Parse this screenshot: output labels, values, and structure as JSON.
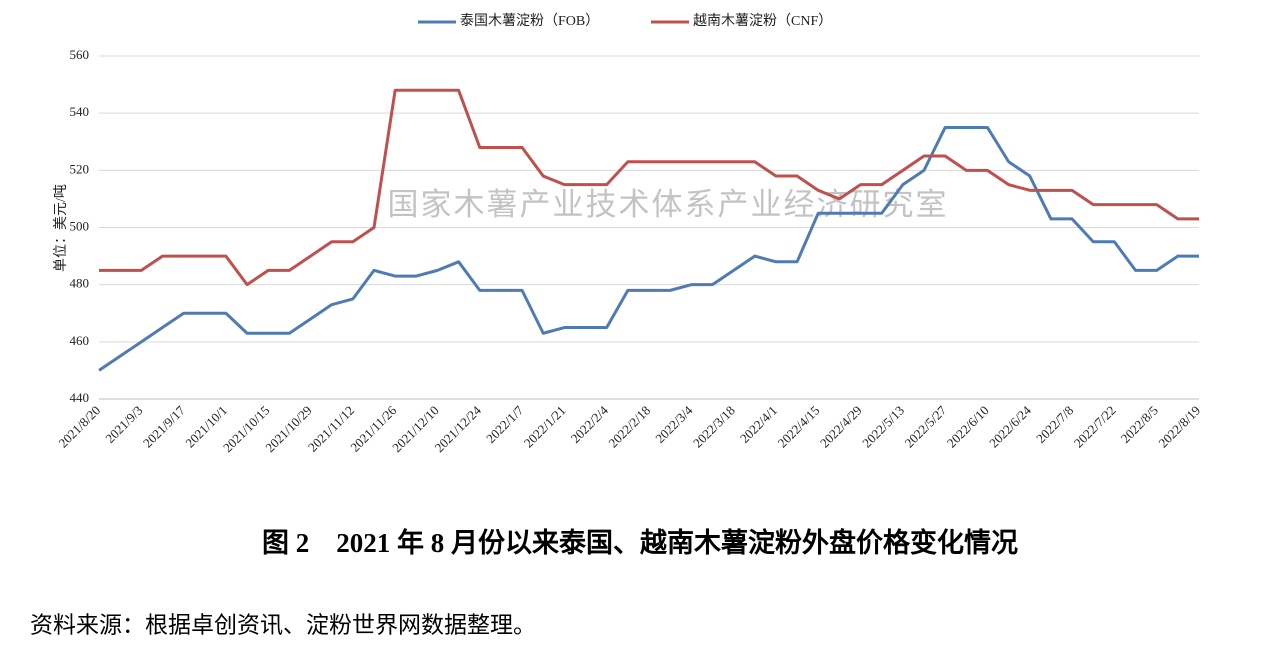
{
  "chart_data": {
    "type": "line",
    "legend_position": "top",
    "ylabel": "单位：美元/吨",
    "watermark": "国家木薯产业技术体系产业经济研究室",
    "caption": "图 2　2021 年 8 月份以来泰国、越南木薯淀粉外盘价格变化情况",
    "source": "资料来源：根据卓创资讯、淀粉世界网数据整理。",
    "categories": [
      "2021/8/20",
      null,
      "2021/9/3",
      null,
      "2021/9/17",
      null,
      "2021/10/1",
      null,
      "2021/10/15",
      null,
      "2021/10/29",
      null,
      "2021/11/12",
      null,
      "2021/11/26",
      null,
      "2021/12/10",
      null,
      "2021/12/24",
      null,
      "2022/1/7",
      null,
      "2022/1/21",
      null,
      "2022/2/4",
      null,
      "2022/2/18",
      null,
      "2022/3/4",
      null,
      "2022/3/18",
      null,
      "2022/4/1",
      null,
      "2022/4/15",
      null,
      "2022/4/29",
      null,
      "2022/5/13",
      null,
      "2022/5/27",
      null,
      "2022/6/10",
      null,
      "2022/6/24",
      null,
      "2022/7/8",
      null,
      "2022/7/22",
      null,
      "2022/8/5",
      null,
      "2022/8/19"
    ],
    "series": [
      {
        "name": "泰国木薯淀粉（FOB）",
        "color": "#4f7bb4",
        "values": [
          450,
          455,
          460,
          465,
          470,
          470,
          470,
          463,
          463,
          463,
          468,
          473,
          475,
          485,
          483,
          483,
          485,
          488,
          478,
          478,
          478,
          463,
          465,
          465,
          465,
          478,
          478,
          478,
          480,
          480,
          485,
          490,
          488,
          488,
          505,
          505,
          505,
          505,
          515,
          520,
          535,
          535,
          535,
          523,
          518,
          503,
          503,
          495,
          495,
          485,
          485,
          490,
          490
        ]
      },
      {
        "name": "越南木薯淀粉（CNF）",
        "color": "#c0504d",
        "values": [
          485,
          485,
          485,
          490,
          490,
          490,
          490,
          480,
          485,
          485,
          490,
          495,
          495,
          500,
          548,
          548,
          548,
          548,
          528,
          528,
          528,
          518,
          515,
          515,
          515,
          523,
          523,
          523,
          523,
          523,
          523,
          523,
          518,
          518,
          513,
          510,
          515,
          515,
          520,
          525,
          525,
          520,
          520,
          515,
          513,
          513,
          513,
          508,
          508,
          508,
          508,
          503,
          503
        ]
      }
    ],
    "ylim": [
      440,
      560
    ],
    "yticks": [
      440,
      460,
      480,
      500,
      520,
      540,
      560
    ],
    "grid": true
  }
}
